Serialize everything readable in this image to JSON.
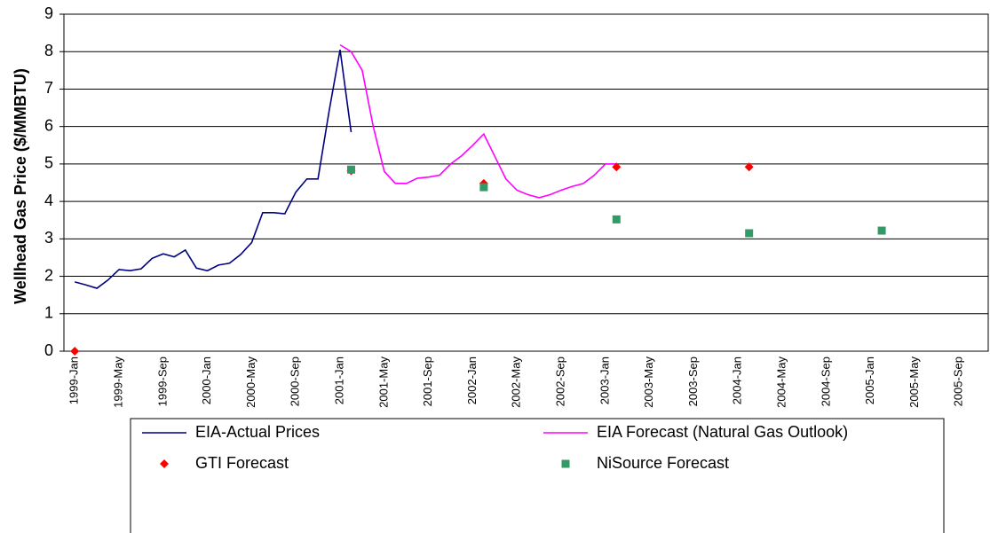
{
  "chart_data": {
    "type": "line",
    "ylabel": "Wellhead Gas Price ($/MMBTU)",
    "ylim": [
      0,
      9
    ],
    "yticks": [
      0,
      1,
      2,
      3,
      4,
      5,
      6,
      7,
      8,
      9
    ],
    "grid": true,
    "legend": "bottom",
    "categories": [
      "1999-Jan",
      null,
      null,
      null,
      "1999-May",
      null,
      null,
      null,
      "1999-Sep",
      null,
      null,
      null,
      "2000-Jan",
      null,
      null,
      null,
      "2000-May",
      null,
      null,
      null,
      "2000-Sep",
      null,
      null,
      null,
      "2001-Jan",
      null,
      null,
      null,
      "2001-May",
      null,
      null,
      null,
      "2001-Sep",
      null,
      null,
      null,
      "2002-Jan",
      null,
      null,
      null,
      "2002-May",
      null,
      null,
      null,
      "2002-Sep",
      null,
      null,
      null,
      "2003-Jan",
      null,
      null,
      null,
      "2003-May",
      null,
      null,
      null,
      "2003-Sep",
      null,
      null,
      null,
      "2004-Jan",
      null,
      null,
      null,
      "2004-May",
      null,
      null,
      null,
      "2004-Sep",
      null,
      null,
      null,
      "2005-Jan",
      null,
      null,
      null,
      "2005-May",
      null,
      null,
      null,
      "2005-Sep",
      null,
      null,
      null
    ],
    "series": [
      {
        "name": "EIA-Actual Prices",
        "color": "#000080",
        "style": "line",
        "values": [
          1.85,
          1.77,
          1.68,
          1.9,
          2.18,
          2.15,
          2.2,
          2.48,
          2.6,
          2.52,
          2.7,
          2.22,
          2.15,
          2.3,
          2.35,
          2.58,
          2.9,
          3.7,
          3.7,
          3.67,
          4.25,
          4.6,
          4.6,
          6.4,
          8.05,
          5.85,
          null,
          null,
          null,
          null,
          null,
          null,
          null,
          null,
          null,
          null,
          null,
          null,
          null,
          null,
          null,
          null,
          null,
          null,
          null,
          null,
          null,
          null,
          null,
          null,
          null,
          null,
          null,
          null,
          null,
          null,
          null,
          null,
          null,
          null,
          null,
          null,
          null,
          null,
          null,
          null,
          null,
          null,
          null,
          null,
          null,
          null,
          null,
          null,
          null,
          null,
          null,
          null,
          null,
          null,
          null,
          null,
          null,
          null
        ]
      },
      {
        "name": "EIA Forecast (Natural Gas Outlook)",
        "color": "#ff00ff",
        "style": "line",
        "values": [
          null,
          null,
          null,
          null,
          null,
          null,
          null,
          null,
          null,
          null,
          null,
          null,
          null,
          null,
          null,
          null,
          null,
          null,
          null,
          null,
          null,
          null,
          null,
          null,
          8.18,
          8.0,
          7.5,
          6.0,
          4.8,
          4.48,
          4.48,
          4.62,
          4.65,
          4.7,
          5.0,
          5.22,
          5.5,
          5.8,
          5.2,
          4.6,
          4.3,
          4.18,
          4.1,
          4.18,
          4.3,
          4.4,
          4.48,
          4.7,
          5.0,
          5.0,
          null,
          null,
          null,
          null,
          null,
          null,
          null,
          null,
          null,
          null,
          null,
          null,
          null,
          null,
          null,
          null,
          null,
          null,
          null,
          null,
          null,
          null,
          null,
          null,
          null,
          null,
          null,
          null,
          null,
          null,
          null,
          null,
          null,
          null
        ]
      },
      {
        "name": "GTI Forecast",
        "color": "#ff0000",
        "style": "scatter",
        "marker": "diamond",
        "values": [
          0,
          null,
          null,
          null,
          null,
          null,
          null,
          null,
          null,
          null,
          null,
          null,
          null,
          null,
          null,
          null,
          null,
          null,
          null,
          null,
          null,
          null,
          null,
          null,
          null,
          4.82,
          null,
          null,
          null,
          null,
          null,
          null,
          null,
          null,
          null,
          null,
          null,
          4.48,
          null,
          null,
          null,
          null,
          null,
          null,
          null,
          null,
          null,
          null,
          null,
          4.92,
          null,
          null,
          null,
          null,
          null,
          null,
          null,
          null,
          null,
          null,
          null,
          4.92,
          null,
          null,
          null,
          null,
          null,
          null,
          null,
          null,
          null,
          null,
          null,
          null,
          null,
          null,
          null,
          null,
          null,
          null,
          null,
          null,
          null,
          null
        ]
      },
      {
        "name": "NiSource Forecast",
        "color": "#339966",
        "style": "scatter",
        "marker": "square",
        "values": [
          null,
          null,
          null,
          null,
          null,
          null,
          null,
          null,
          null,
          null,
          null,
          null,
          null,
          null,
          null,
          null,
          null,
          null,
          null,
          null,
          null,
          null,
          null,
          null,
          null,
          4.85,
          null,
          null,
          null,
          null,
          null,
          null,
          null,
          null,
          null,
          null,
          null,
          4.38,
          null,
          null,
          null,
          null,
          null,
          null,
          null,
          null,
          null,
          null,
          null,
          3.52,
          null,
          null,
          null,
          null,
          null,
          null,
          null,
          null,
          null,
          null,
          null,
          3.15,
          null,
          null,
          null,
          null,
          null,
          null,
          null,
          null,
          null,
          null,
          null,
          3.22,
          null,
          null,
          null,
          null,
          null,
          null,
          null,
          null,
          null,
          null
        ]
      }
    ]
  }
}
